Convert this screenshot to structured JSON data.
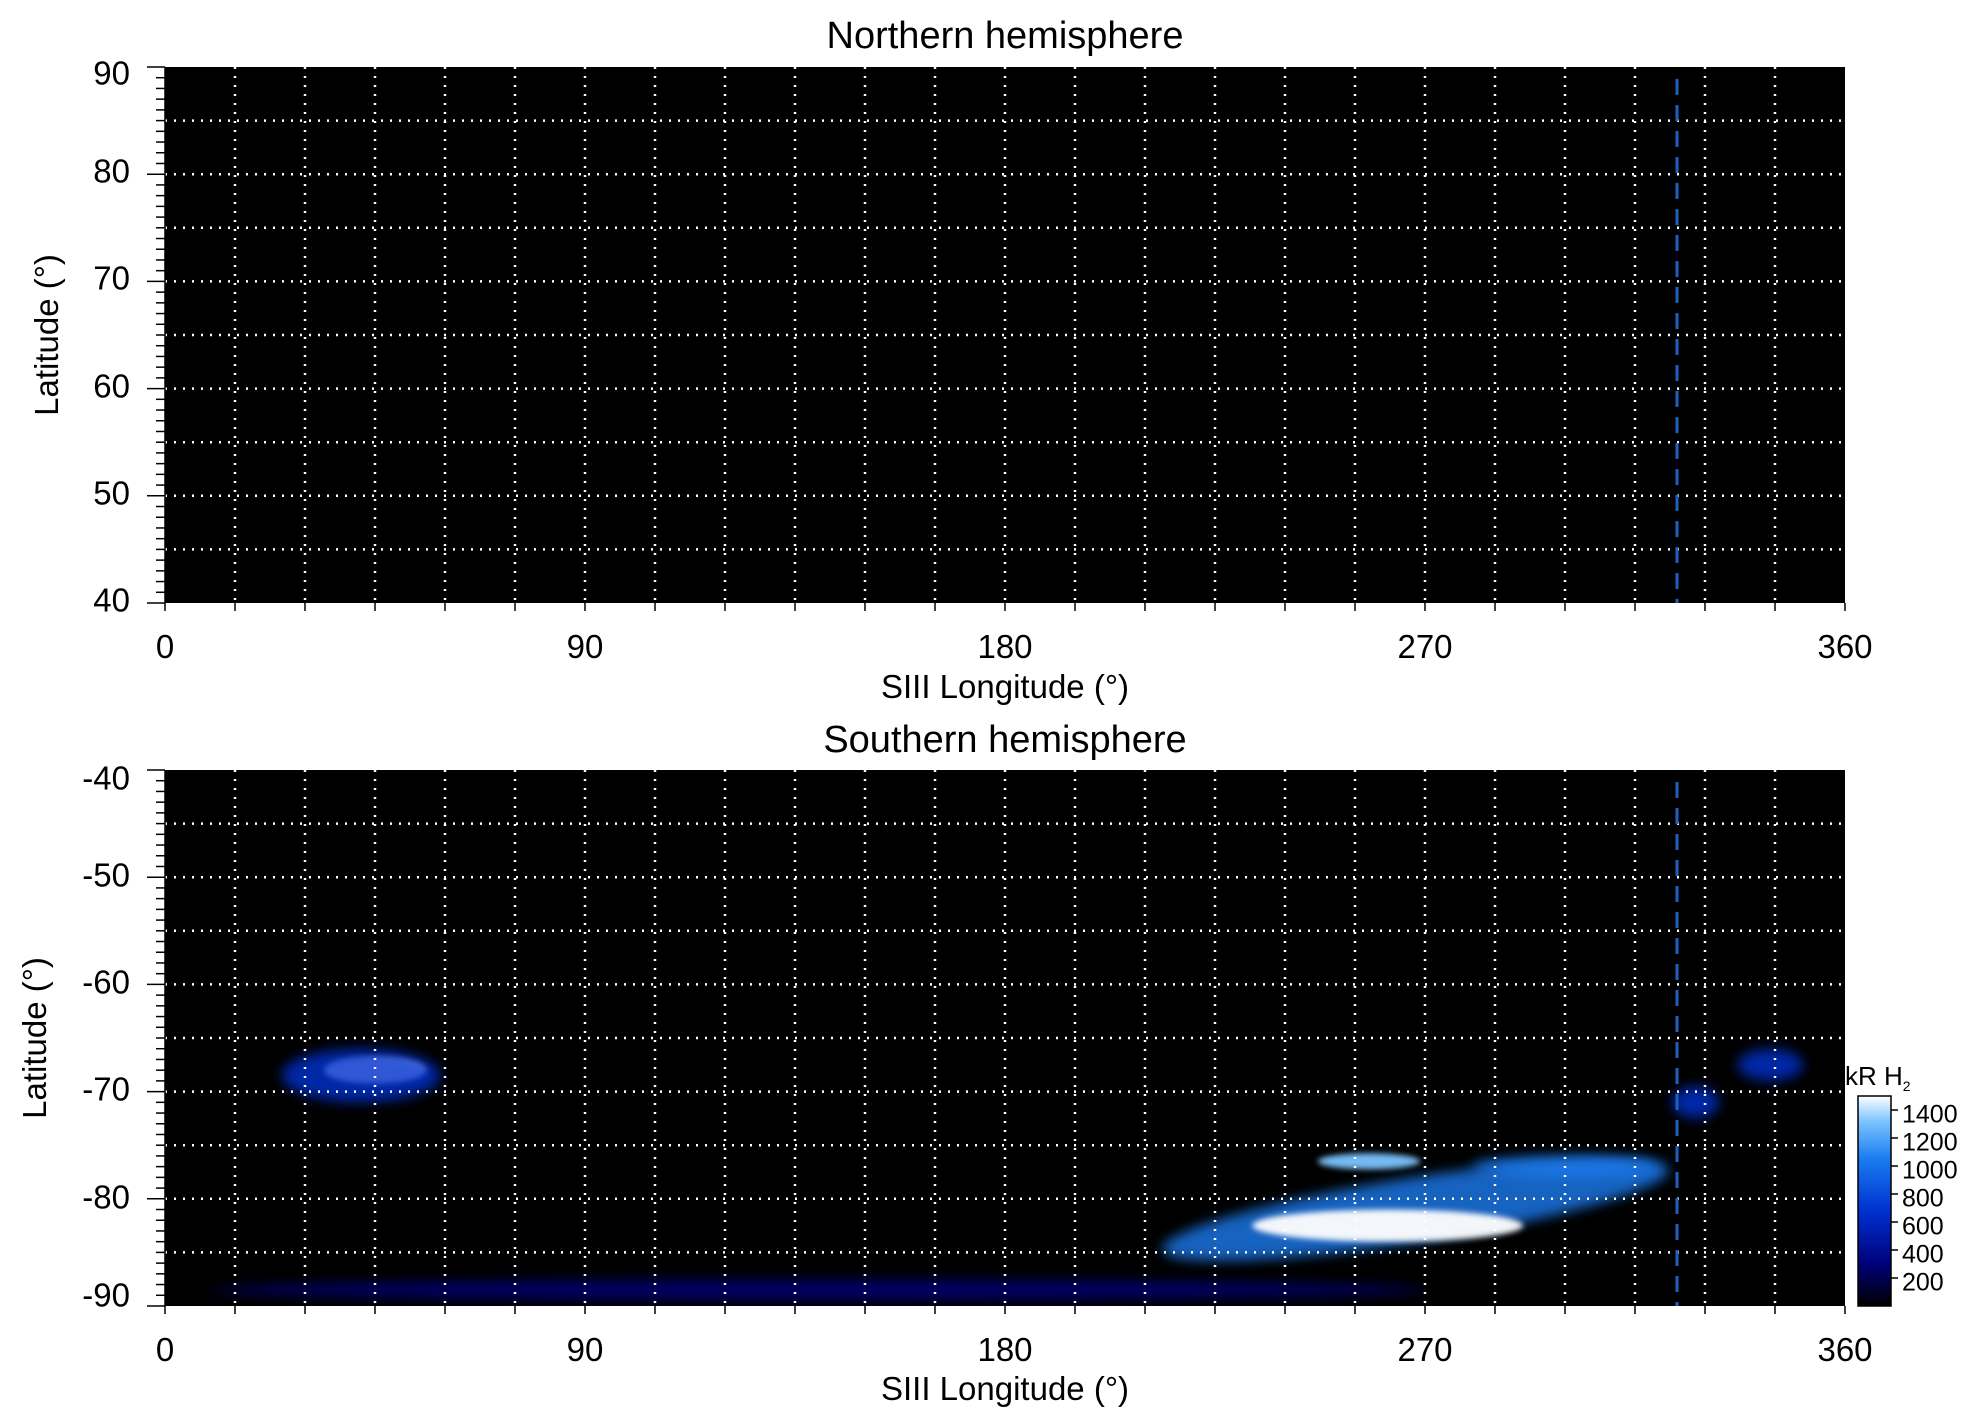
{
  "chart_data": [
    {
      "type": "heatmap",
      "title": "Northern hemisphere",
      "xlabel": "SIII Longitude (°)",
      "ylabel": "Latitude (°)",
      "xlim": [
        0,
        360
      ],
      "ylim": [
        40,
        90
      ],
      "xticks": [
        "0",
        "90",
        "180",
        "270",
        "360"
      ],
      "yticks": [
        "40",
        "50",
        "60",
        "70",
        "80",
        "90"
      ],
      "grid": true,
      "grid_style": "dotted",
      "grid_color": "#ffffff",
      "background": "#000000",
      "reference_line": {
        "longitude": 324,
        "style": "dashed",
        "color": "#1f5fbf"
      },
      "emission_regions": []
    },
    {
      "type": "heatmap",
      "title": "Southern hemisphere",
      "xlabel": "SIII Longitude (°)",
      "ylabel": "Latitude (°)",
      "xlim": [
        0,
        360
      ],
      "ylim": [
        -90,
        -40
      ],
      "xticks": [
        "0",
        "90",
        "180",
        "270",
        "360"
      ],
      "yticks": [
        "-40",
        "-50",
        "-60",
        "-70",
        "-80",
        "-90"
      ],
      "grid": true,
      "grid_style": "dotted",
      "grid_color": "#ffffff",
      "background": "#000000",
      "reference_line": {
        "longitude": 324,
        "style": "dashed",
        "color": "#1f5fbf"
      },
      "emission_regions": [
        {
          "lon_center": 45,
          "lat_center": -68,
          "lon_width": 22,
          "lat_height": 2.5,
          "intensity": 1400
        },
        {
          "lon_center": 42,
          "lat_center": -68.5,
          "lon_width": 34,
          "lat_height": 5,
          "intensity": 450
        },
        {
          "lon_center": 268,
          "lat_center": -81,
          "lon_width": 110,
          "lat_height": 6,
          "intensity": 900
        },
        {
          "lon_center": 262,
          "lat_center": -82.5,
          "lon_width": 58,
          "lat_height": 3,
          "intensity": 1450
        },
        {
          "lon_center": 300,
          "lat_center": -77,
          "lon_width": 40,
          "lat_height": 2,
          "intensity": 900
        },
        {
          "lon_center": 258,
          "lat_center": -76.5,
          "lon_width": 22,
          "lat_height": 1.5,
          "intensity": 1100
        },
        {
          "lon_center": 328,
          "lat_center": -71,
          "lon_width": 10,
          "lat_height": 3,
          "intensity": 500
        },
        {
          "lon_center": 344,
          "lat_center": -67.5,
          "lon_width": 14,
          "lat_height": 3,
          "intensity": 550
        },
        {
          "lon_center": 140,
          "lat_center": -88.5,
          "lon_width": 260,
          "lat_height": 2,
          "intensity": 250
        },
        {
          "lon_center": 45,
          "lat_center": -82,
          "lon_width": 70,
          "lat_height": 5,
          "intensity": 120
        }
      ],
      "colorbar": {
        "title": "kR H",
        "title_subscript": "2",
        "ticks": [
          "200",
          "400",
          "600",
          "800",
          "1000",
          "1200",
          "1400"
        ],
        "tick_values": [
          200,
          400,
          600,
          800,
          1000,
          1200,
          1400
        ],
        "range": [
          0,
          1500
        ],
        "colors": [
          "#000000",
          "#00007a",
          "#0030d0",
          "#1a7cf0",
          "#7cc4ff",
          "#ffffff"
        ]
      }
    }
  ]
}
